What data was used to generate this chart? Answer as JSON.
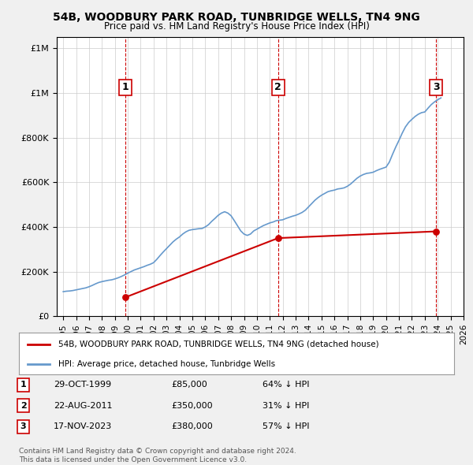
{
  "title": "54B, WOODBURY PARK ROAD, TUNBRIDGE WELLS, TN4 9NG",
  "subtitle": "Price paid vs. HM Land Registry's House Price Index (HPI)",
  "hpi_years": [
    1995,
    1995.25,
    1995.5,
    1995.75,
    1996,
    1996.25,
    1996.5,
    1996.75,
    1997,
    1997.25,
    1997.5,
    1997.75,
    1998,
    1998.25,
    1998.5,
    1998.75,
    1999,
    1999.25,
    1999.5,
    1999.75,
    2000,
    2000.25,
    2000.5,
    2000.75,
    2001,
    2001.25,
    2001.5,
    2001.75,
    2002,
    2002.25,
    2002.5,
    2002.75,
    2003,
    2003.25,
    2003.5,
    2003.75,
    2004,
    2004.25,
    2004.5,
    2004.75,
    2005,
    2005.25,
    2005.5,
    2005.75,
    2006,
    2006.25,
    2006.5,
    2006.75,
    2007,
    2007.25,
    2007.5,
    2007.75,
    2008,
    2008.25,
    2008.5,
    2008.75,
    2009,
    2009.25,
    2009.5,
    2009.75,
    2010,
    2010.25,
    2010.5,
    2010.75,
    2011,
    2011.25,
    2011.5,
    2011.75,
    2012,
    2012.25,
    2012.5,
    2012.75,
    2013,
    2013.25,
    2013.5,
    2013.75,
    2014,
    2014.25,
    2014.5,
    2014.75,
    2015,
    2015.25,
    2015.5,
    2015.75,
    2016,
    2016.25,
    2016.5,
    2016.75,
    2017,
    2017.25,
    2017.5,
    2017.75,
    2018,
    2018.25,
    2018.5,
    2018.75,
    2019,
    2019.25,
    2019.5,
    2019.75,
    2020,
    2020.25,
    2020.5,
    2020.75,
    2021,
    2021.25,
    2021.5,
    2021.75,
    2022,
    2022.25,
    2022.5,
    2022.75,
    2023,
    2023.25,
    2023.5,
    2023.75,
    2024,
    2024.25
  ],
  "hpi_values": [
    110000,
    112000,
    113000,
    115000,
    118000,
    121000,
    124000,
    127000,
    132000,
    138000,
    145000,
    151000,
    155000,
    158000,
    161000,
    163000,
    167000,
    172000,
    178000,
    185000,
    193000,
    200000,
    207000,
    212000,
    217000,
    222000,
    228000,
    233000,
    240000,
    255000,
    272000,
    288000,
    303000,
    318000,
    333000,
    345000,
    355000,
    368000,
    378000,
    385000,
    388000,
    390000,
    392000,
    393000,
    400000,
    410000,
    425000,
    438000,
    452000,
    462000,
    468000,
    462000,
    450000,
    428000,
    405000,
    382000,
    368000,
    362000,
    368000,
    382000,
    390000,
    398000,
    406000,
    412000,
    418000,
    422000,
    428000,
    430000,
    432000,
    438000,
    443000,
    448000,
    452000,
    458000,
    465000,
    475000,
    490000,
    505000,
    520000,
    532000,
    542000,
    550000,
    558000,
    562000,
    565000,
    570000,
    572000,
    575000,
    582000,
    592000,
    605000,
    618000,
    628000,
    635000,
    640000,
    642000,
    645000,
    652000,
    658000,
    663000,
    668000,
    690000,
    725000,
    758000,
    788000,
    820000,
    848000,
    868000,
    882000,
    895000,
    905000,
    912000,
    915000,
    932000,
    948000,
    960000,
    970000,
    978000
  ],
  "sale_years": [
    1999.83,
    2011.64,
    2023.88
  ],
  "sale_prices": [
    85000,
    350000,
    380000
  ],
  "sale_labels": [
    "1",
    "2",
    "3"
  ],
  "sale_dates": [
    "29-OCT-1999",
    "22-AUG-2011",
    "17-NOV-2023"
  ],
  "sale_amounts": [
    "£85,000",
    "£350,000",
    "£380,000"
  ],
  "sale_hpi_diff": [
    "64% ↓ HPI",
    "31% ↓ HPI",
    "57% ↓ HPI"
  ],
  "vline_years": [
    1999.83,
    2011.64,
    2023.88
  ],
  "xmin": 1994.5,
  "xmax": 2026,
  "ymin": 0,
  "ymax": 1250000,
  "yticks": [
    0,
    200000,
    400000,
    600000,
    800000,
    1000000,
    1200000
  ],
  "xticks": [
    1995,
    1996,
    1997,
    1998,
    1999,
    2000,
    2001,
    2002,
    2003,
    2004,
    2005,
    2006,
    2007,
    2008,
    2009,
    2010,
    2011,
    2012,
    2013,
    2014,
    2015,
    2016,
    2017,
    2018,
    2019,
    2020,
    2021,
    2022,
    2023,
    2024,
    2025,
    2026
  ],
  "hpi_color": "#6699cc",
  "sale_line_color": "#cc0000",
  "sale_dot_color": "#cc0000",
  "vline_color": "#cc0000",
  "bg_color": "#f0f0f0",
  "plot_bg_color": "#ffffff",
  "legend_line1": "54B, WOODBURY PARK ROAD, TUNBRIDGE WELLS, TN4 9NG (detached house)",
  "legend_line2": "HPI: Average price, detached house, Tunbridge Wells",
  "footer1": "Contains HM Land Registry data © Crown copyright and database right 2024.",
  "footer2": "This data is licensed under the Open Government Licence v3.0."
}
